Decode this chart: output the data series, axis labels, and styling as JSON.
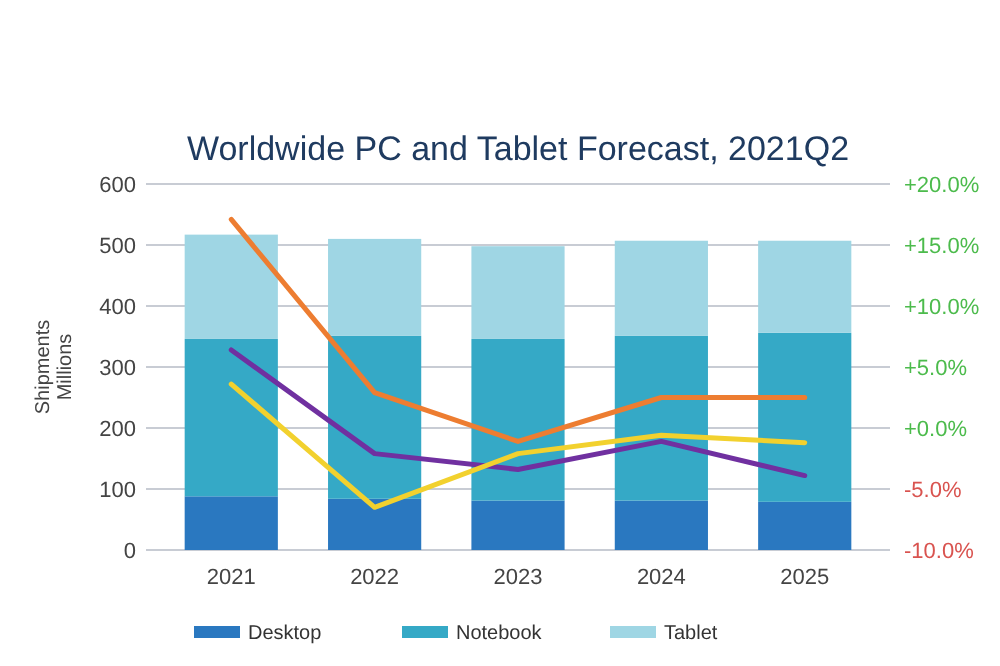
{
  "chart_data": {
    "type": "bar",
    "title": "Worldwide PC and Tablet Forecast, 2021Q2",
    "ylabel": "Shipments Millions",
    "categories": [
      "2021",
      "2022",
      "2023",
      "2024",
      "2025"
    ],
    "stacked": true,
    "grid": "y",
    "legend": "bottom",
    "ylim": [
      0,
      600
    ],
    "yticks": [
      0,
      100,
      200,
      300,
      400,
      500,
      600
    ],
    "y2lim": [
      -10,
      20
    ],
    "y2ticks": [
      {
        "value": -10,
        "label": "-10.0%"
      },
      {
        "value": -5,
        "label": "-5.0%"
      },
      {
        "value": 0,
        "label": "+0.0%"
      },
      {
        "value": 5,
        "label": "+5.0%"
      },
      {
        "value": 10,
        "label": "+10.0%"
      },
      {
        "value": 15,
        "label": "+15.0%"
      },
      {
        "value": 20,
        "label": "+20.0%"
      }
    ],
    "series": [
      {
        "name": "Desktop",
        "color": "#2a78c0",
        "values": [
          88,
          84,
          81,
          81,
          79
        ]
      },
      {
        "name": "Notebook",
        "color": "#35a9c6",
        "values": [
          258,
          267,
          265,
          270,
          277
        ]
      },
      {
        "name": "Tablet",
        "color": "#9fd6e4",
        "values": [
          171,
          159,
          152,
          156,
          151
        ]
      },
      {
        "type": "line",
        "axis": "y2",
        "color": "#ed7d31",
        "values": [
          17.1,
          2.9,
          -1.1,
          2.5,
          2.5
        ]
      },
      {
        "type": "line",
        "axis": "y2",
        "color": "#7030a0",
        "values": [
          6.4,
          -2.1,
          -3.4,
          -1.1,
          -3.9
        ]
      },
      {
        "type": "line",
        "axis": "y2",
        "color": "#f2d12e",
        "values": [
          3.6,
          -6.5,
          -2.1,
          -0.6,
          -1.2
        ]
      }
    ]
  }
}
